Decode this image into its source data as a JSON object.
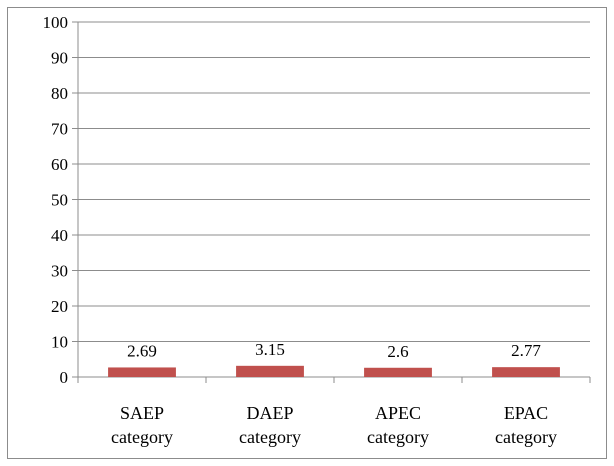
{
  "chart_data": {
    "type": "bar",
    "categories": [
      "SAEP category",
      "DAEP category",
      "APEC category",
      "EPAC category"
    ],
    "category_lines": [
      [
        "SAEP",
        "category"
      ],
      [
        "DAEP",
        "category"
      ],
      [
        "APEC",
        "category"
      ],
      [
        "EPAC",
        "category"
      ]
    ],
    "values": [
      2.69,
      3.15,
      2.6,
      2.77
    ],
    "data_labels": [
      "2.69",
      "3.15",
      "2.6",
      "2.77"
    ],
    "yticks": [
      0,
      10,
      20,
      30,
      40,
      50,
      60,
      70,
      80,
      90,
      100
    ],
    "ylim": [
      0,
      100
    ],
    "grid": true,
    "legend": "none",
    "title": "",
    "xlabel": "",
    "ylabel": "",
    "colors": {
      "bar": "#c0504d",
      "grid": "#8c8c8c",
      "axis": "#8c8c8c"
    }
  }
}
